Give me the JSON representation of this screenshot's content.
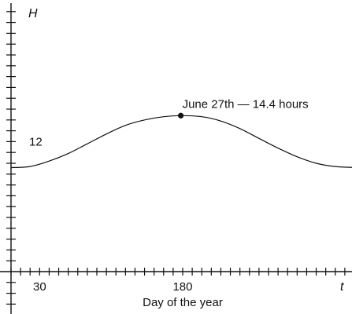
{
  "chart_data": {
    "type": "line",
    "xlabel": "Day of the year",
    "x_axis_symbol": "t",
    "y_axis_symbol": "H",
    "x_tick_labels": [
      {
        "value": 30,
        "label": "30"
      },
      {
        "value": 180,
        "label": "180"
      }
    ],
    "y_tick_labels": [
      {
        "value": 12,
        "label": "12"
      }
    ],
    "xlim": [
      0,
      365
    ],
    "ylim": [
      0,
      16
    ],
    "x_tick_step": 10,
    "y_tick_step": 1,
    "series": [
      {
        "x": [
          0,
          20,
          40,
          60,
          80,
          100,
          120,
          140,
          160,
          178,
          200,
          220,
          240,
          260,
          280,
          300,
          320,
          340,
          365
        ],
        "y": [
          9.6,
          9.7,
          10.2,
          10.9,
          11.8,
          12.7,
          13.5,
          14.0,
          14.3,
          14.4,
          14.3,
          13.9,
          13.2,
          12.3,
          11.4,
          10.6,
          10.0,
          9.7,
          9.6
        ]
      }
    ],
    "annotation": {
      "x": 178,
      "y": 14.4,
      "text": "June 27th — 14.4 hours"
    }
  }
}
